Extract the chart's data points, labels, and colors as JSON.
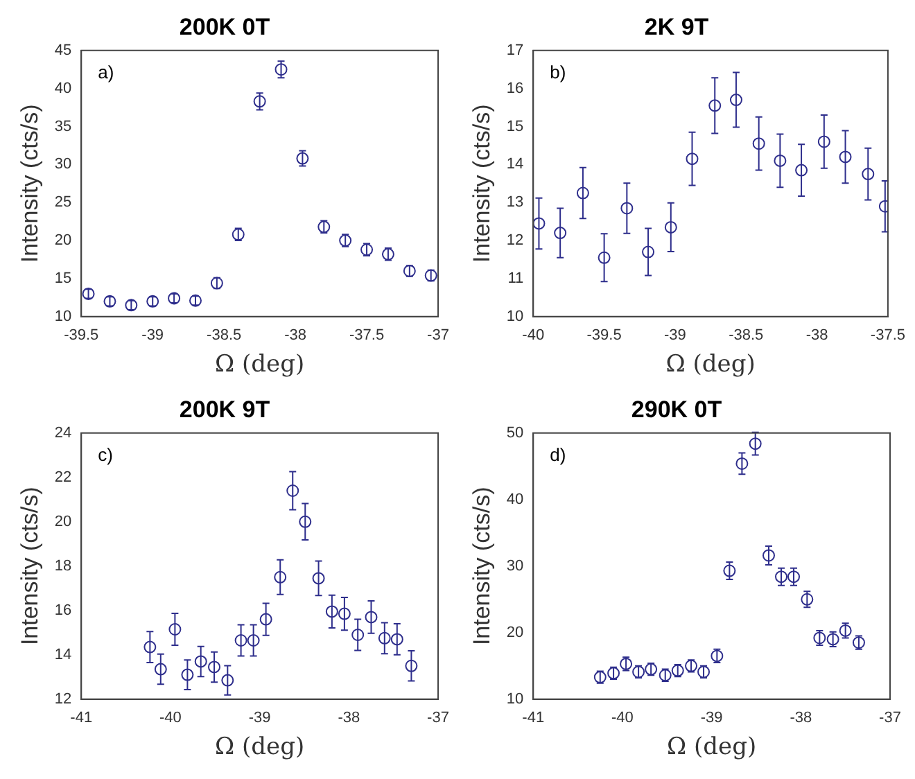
{
  "chart_data": [
    {
      "type": "scatter",
      "title": "200K 0T",
      "xlabel": "Ω (deg)",
      "ylabel": "Intensity (cts/s)",
      "annotations": [
        "a)"
      ],
      "marker": "circle",
      "color": "#2e2e8c",
      "grid": false,
      "x": [
        -39.45,
        -39.3,
        -39.15,
        -39.0,
        -38.85,
        -38.7,
        -38.55,
        -38.4,
        -38.25,
        -38.1,
        -37.95,
        -37.8,
        -37.65,
        -37.5,
        -37.35,
        -37.2,
        -37.05
      ],
      "values": [
        13.0,
        12.0,
        11.5,
        12.0,
        12.4,
        12.1,
        14.4,
        20.8,
        38.3,
        42.5,
        30.8,
        21.8,
        20.0,
        18.8,
        18.2,
        16.0,
        15.4
      ],
      "errors": [
        0.6,
        0.6,
        0.6,
        0.6,
        0.6,
        0.6,
        0.7,
        0.8,
        1.1,
        1.1,
        1.0,
        0.8,
        0.8,
        0.8,
        0.8,
        0.7,
        0.7
      ],
      "xlim": [
        -39.5,
        -37
      ],
      "ylim": [
        10,
        45
      ],
      "xticks": [
        -39.5,
        -39,
        -38.5,
        -38,
        -37.5,
        -37
      ],
      "yticks": [
        10,
        15,
        20,
        25,
        30,
        35,
        40,
        45
      ]
    },
    {
      "type": "scatter",
      "title": "2K 9T",
      "xlabel": "Ω (deg)",
      "ylabel": "Intensity (cts/s)",
      "annotations": [
        "b)"
      ],
      "marker": "circle",
      "color": "#2e2e8c",
      "grid": false,
      "x": [
        -39.96,
        -39.81,
        -39.65,
        -39.5,
        -39.34,
        -39.19,
        -39.03,
        -38.88,
        -38.72,
        -38.57,
        -38.41,
        -38.26,
        -38.11,
        -37.95,
        -37.8,
        -37.64,
        -37.52
      ],
      "values": [
        12.45,
        12.2,
        13.25,
        11.55,
        12.85,
        11.7,
        12.35,
        14.15,
        15.55,
        15.7,
        14.55,
        14.1,
        13.85,
        14.6,
        14.2,
        13.75,
        12.9
      ],
      "errors": [
        0.67,
        0.65,
        0.67,
        0.63,
        0.66,
        0.62,
        0.64,
        0.7,
        0.73,
        0.72,
        0.7,
        0.7,
        0.68,
        0.7,
        0.69,
        0.68,
        0.67
      ],
      "xlim": [
        -40,
        -37.5
      ],
      "ylim": [
        10,
        17
      ],
      "xticks": [
        -40,
        -39.5,
        -39,
        -38.5,
        -38,
        -37.5
      ],
      "yticks": [
        10,
        11,
        12,
        13,
        14,
        15,
        16,
        17
      ]
    },
    {
      "type": "scatter",
      "title": "200K 9T",
      "xlabel": "Ω (deg)",
      "ylabel": "Intensity (cts/s)",
      "annotations": [
        "c)"
      ],
      "marker": "circle",
      "color": "#2e2e8c",
      "grid": false,
      "x": [
        -40.23,
        -40.11,
        -39.95,
        -39.81,
        -39.66,
        -39.51,
        -39.36,
        -39.21,
        -39.07,
        -38.93,
        -38.77,
        -38.63,
        -38.49,
        -38.34,
        -38.19,
        -38.05,
        -37.9,
        -37.75,
        -37.6,
        -37.46,
        -37.3
      ],
      "values": [
        14.35,
        13.35,
        15.15,
        13.1,
        13.7,
        13.45,
        12.85,
        14.65,
        14.65,
        15.6,
        17.5,
        21.4,
        20.0,
        17.45,
        15.95,
        15.85,
        14.9,
        15.7,
        14.75,
        14.7,
        13.5
      ],
      "errors": [
        0.7,
        0.68,
        0.72,
        0.67,
        0.68,
        0.68,
        0.66,
        0.7,
        0.7,
        0.72,
        0.78,
        0.86,
        0.82,
        0.78,
        0.74,
        0.74,
        0.7,
        0.73,
        0.7,
        0.7,
        0.68
      ],
      "xlim": [
        -41,
        -37
      ],
      "ylim": [
        12,
        24
      ],
      "xticks": [
        -41,
        -40,
        -39,
        -38,
        -37
      ],
      "yticks": [
        12,
        14,
        16,
        18,
        20,
        22,
        24
      ]
    },
    {
      "type": "scatter",
      "title": "290K 0T",
      "xlabel": "Ω (deg)",
      "ylabel": "Intensity (cts/s)",
      "annotations": [
        "d)"
      ],
      "marker": "circle",
      "color": "#2e2e8c",
      "grid": false,
      "x": [
        -40.25,
        -40.1,
        -39.96,
        -39.82,
        -39.68,
        -39.52,
        -39.38,
        -39.23,
        -39.09,
        -38.94,
        -38.8,
        -38.66,
        -38.51,
        -38.36,
        -38.22,
        -38.08,
        -37.93,
        -37.79,
        -37.64,
        -37.5,
        -37.35
      ],
      "values": [
        13.3,
        13.9,
        15.3,
        14.1,
        14.5,
        13.6,
        14.3,
        15.0,
        14.1,
        16.5,
        29.3,
        45.4,
        48.4,
        31.6,
        28.4,
        28.4,
        25.0,
        19.2,
        19.0,
        20.3,
        18.5
      ],
      "errors": [
        0.9,
        0.9,
        1.0,
        0.9,
        0.9,
        0.9,
        0.9,
        0.9,
        0.9,
        1.0,
        1.3,
        1.6,
        1.7,
        1.4,
        1.3,
        1.3,
        1.2,
        1.1,
        1.1,
        1.1,
        1.0
      ],
      "xlim": [
        -41,
        -37
      ],
      "ylim": [
        10,
        50
      ],
      "xticks": [
        -41,
        -40,
        -39,
        -38,
        -37
      ],
      "yticks": [
        10,
        20,
        30,
        40,
        50
      ]
    }
  ]
}
